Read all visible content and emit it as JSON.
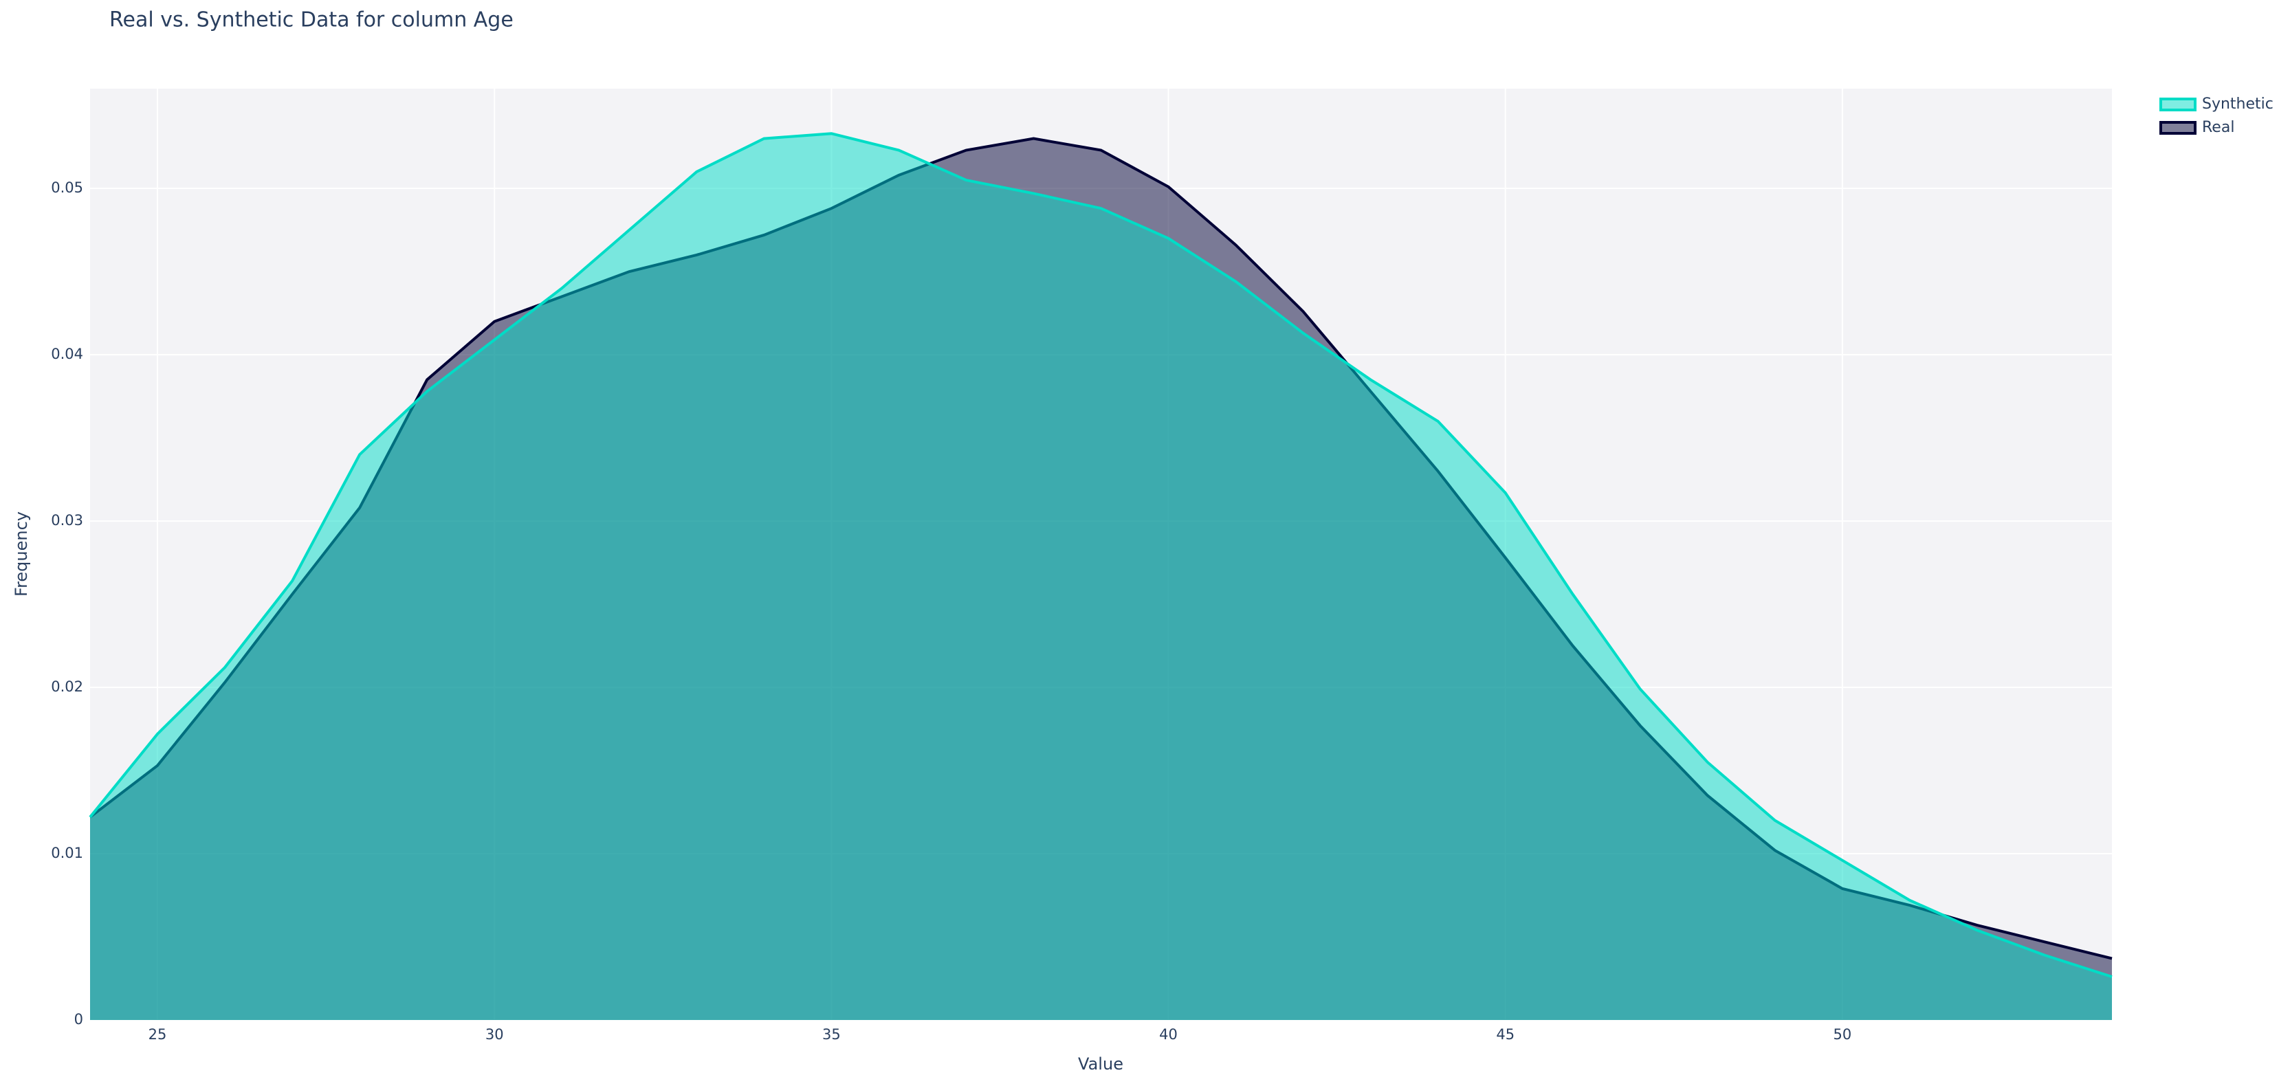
{
  "chart_data": {
    "type": "area",
    "title": "Real vs. Synthetic Data for column Age",
    "x_label": "Value",
    "y_label": "Frequency",
    "x": [
      24,
      25,
      26,
      27,
      28,
      29,
      30,
      31,
      32,
      33,
      34,
      35,
      36,
      37,
      38,
      39,
      40,
      41,
      42,
      43,
      44,
      45,
      46,
      47,
      48,
      49,
      50,
      51,
      52,
      53,
      54
    ],
    "series": [
      {
        "name": "Real",
        "color": "#010136",
        "values": [
          0.0122,
          0.0153,
          0.0203,
          0.0256,
          0.0308,
          0.0385,
          0.042,
          0.0435,
          0.045,
          0.046,
          0.0472,
          0.0488,
          0.0508,
          0.0523,
          0.053,
          0.0523,
          0.0501,
          0.0466,
          0.0426,
          0.0378,
          0.033,
          0.0278,
          0.0225,
          0.0177,
          0.0135,
          0.0102,
          0.0079,
          0.0069,
          0.0057,
          0.0047,
          0.0037
        ]
      },
      {
        "name": "Synthetic",
        "color": "#00dcc6",
        "values": [
          0.0122,
          0.0172,
          0.0212,
          0.0264,
          0.034,
          0.0378,
          0.0409,
          0.044,
          0.0475,
          0.051,
          0.053,
          0.0533,
          0.0523,
          0.0505,
          0.0497,
          0.0488,
          0.047,
          0.0444,
          0.0413,
          0.0385,
          0.036,
          0.0317,
          0.0256,
          0.0199,
          0.0155,
          0.012,
          0.0096,
          0.0072,
          0.0054,
          0.0039,
          0.0026
        ]
      }
    ],
    "xlim": [
      24,
      54
    ],
    "xticks": [
      25,
      30,
      35,
      40,
      45,
      50
    ],
    "ylim": [
      0,
      0.056
    ],
    "yticks": [
      0,
      0.01,
      0.02,
      0.03,
      0.04,
      0.05
    ],
    "grid": true,
    "legend": "right"
  }
}
